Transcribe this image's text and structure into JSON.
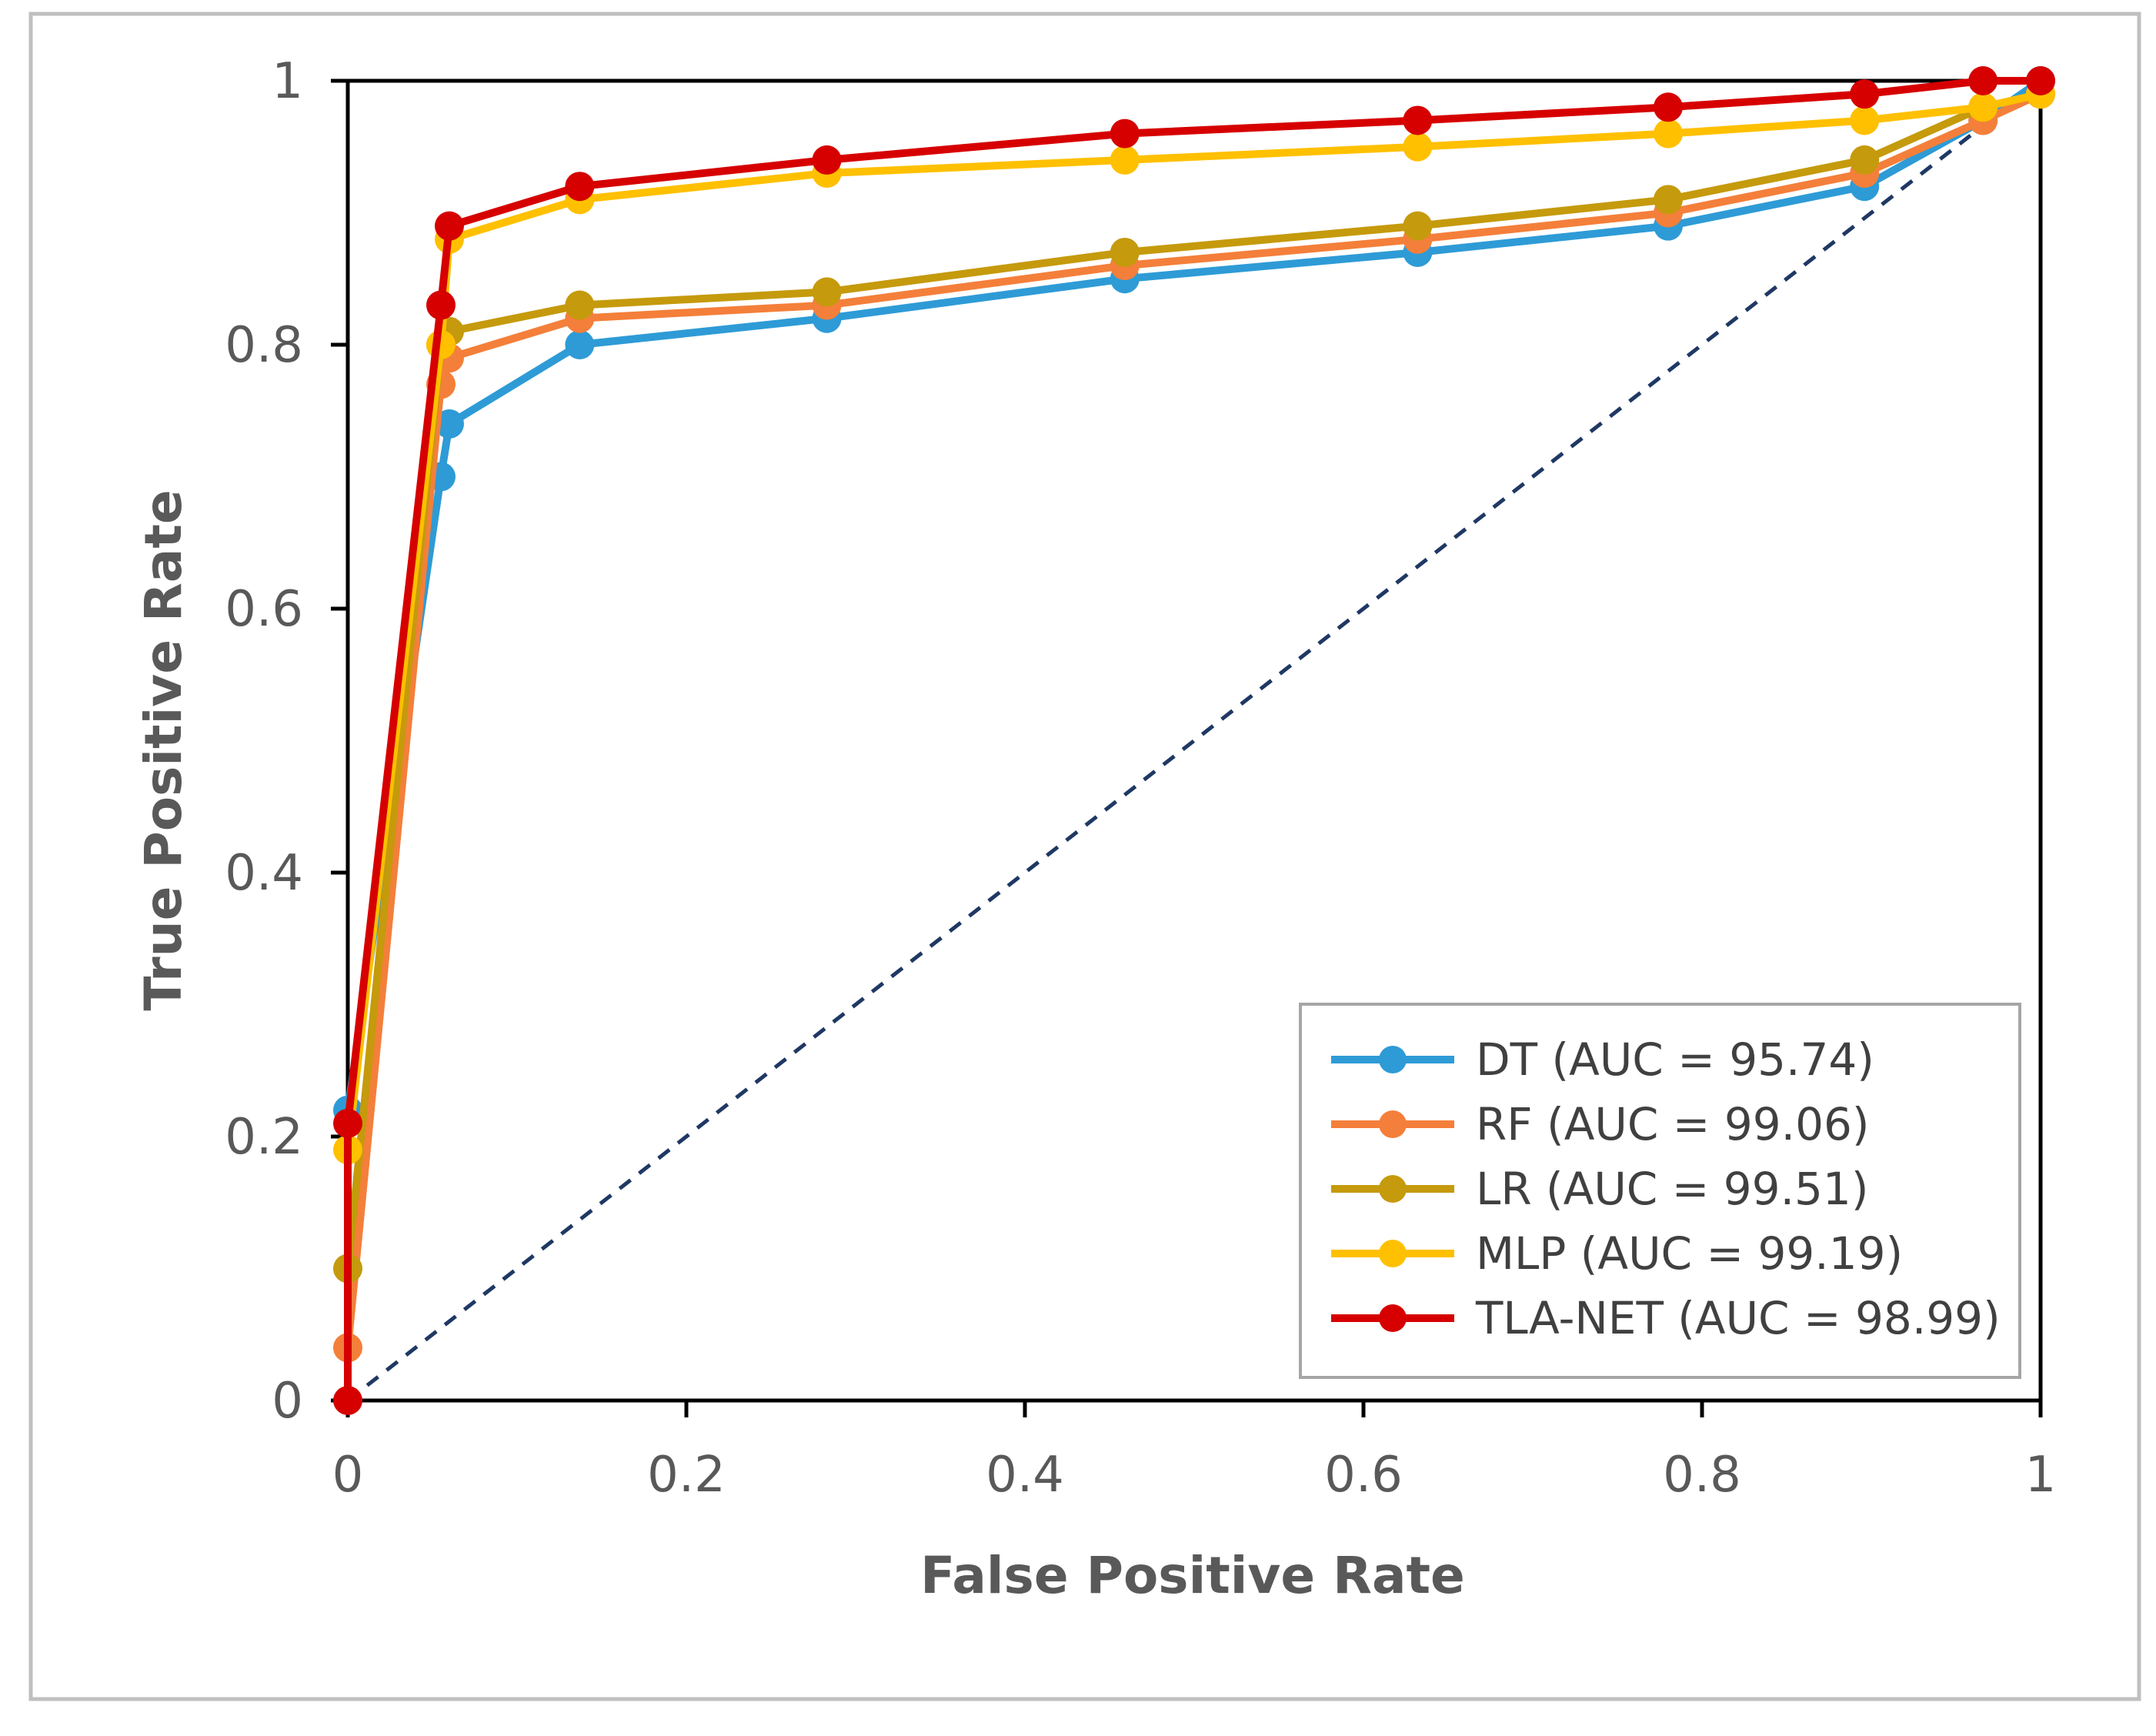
{
  "chart_data": {
    "type": "line",
    "title": "",
    "xlabel": "False Positive Rate",
    "ylabel": "True Positive Rate",
    "xlim": [
      0,
      1
    ],
    "ylim": [
      0,
      1
    ],
    "x_ticks": [
      "0",
      "0.2",
      "0.4",
      "0.6",
      "0.8",
      "1"
    ],
    "y_ticks": [
      "0",
      "0.2",
      "0.4",
      "0.6",
      "0.8",
      "1"
    ],
    "grid": false,
    "legend_position": "bottom-right",
    "diagonal": {
      "name": "chance",
      "color": "#1f3864",
      "style": "dashed",
      "points": [
        [
          0,
          0
        ],
        [
          1,
          1
        ]
      ]
    },
    "series": [
      {
        "name": "DT (AUC = 95.74)",
        "color": "#2e9bd6",
        "points": [
          [
            0,
            0.22
          ],
          [
            0.055,
            0.7
          ],
          [
            0.06,
            0.74
          ],
          [
            0.137,
            0.8
          ],
          [
            0.283,
            0.82
          ],
          [
            0.459,
            0.85
          ],
          [
            0.632,
            0.87
          ],
          [
            0.78,
            0.89
          ],
          [
            0.896,
            0.92
          ],
          [
            0.966,
            0.97
          ],
          [
            1.0,
            1.0
          ]
        ]
      },
      {
        "name": "RF (AUC = 99.06)",
        "color": "#f47f3a",
        "points": [
          [
            0,
            0.04
          ],
          [
            0.055,
            0.77
          ],
          [
            0.06,
            0.79
          ],
          [
            0.137,
            0.82
          ],
          [
            0.283,
            0.83
          ],
          [
            0.459,
            0.86
          ],
          [
            0.632,
            0.88
          ],
          [
            0.78,
            0.9
          ],
          [
            0.896,
            0.93
          ],
          [
            0.966,
            0.97
          ],
          [
            1.0,
            0.99
          ]
        ]
      },
      {
        "name": "LR (AUC = 99.51)",
        "color": "#c59a0c",
        "points": [
          [
            0,
            0.1
          ],
          [
            0.055,
            0.8
          ],
          [
            0.06,
            0.81
          ],
          [
            0.137,
            0.83
          ],
          [
            0.283,
            0.84
          ],
          [
            0.459,
            0.87
          ],
          [
            0.632,
            0.89
          ],
          [
            0.78,
            0.91
          ],
          [
            0.896,
            0.94
          ],
          [
            0.966,
            0.98
          ],
          [
            1.0,
            0.99
          ]
        ]
      },
      {
        "name": "MLP (AUC = 99.19)",
        "color": "#ffc000",
        "points": [
          [
            0,
            0.19
          ],
          [
            0.055,
            0.8
          ],
          [
            0.06,
            0.88
          ],
          [
            0.137,
            0.91
          ],
          [
            0.283,
            0.93
          ],
          [
            0.459,
            0.94
          ],
          [
            0.632,
            0.95
          ],
          [
            0.78,
            0.96
          ],
          [
            0.896,
            0.97
          ],
          [
            0.966,
            0.98
          ],
          [
            1.0,
            0.99
          ]
        ]
      },
      {
        "name": "TLA-NET (AUC = 98.99)",
        "color": "#d60000",
        "points": [
          [
            0,
            0
          ],
          [
            0,
            0.21
          ],
          [
            0.055,
            0.83
          ],
          [
            0.06,
            0.89
          ],
          [
            0.137,
            0.92
          ],
          [
            0.283,
            0.94
          ],
          [
            0.459,
            0.96
          ],
          [
            0.632,
            0.97
          ],
          [
            0.78,
            0.98
          ],
          [
            0.896,
            0.99
          ],
          [
            0.966,
            1.0
          ],
          [
            1.0,
            1.0
          ]
        ]
      }
    ]
  }
}
